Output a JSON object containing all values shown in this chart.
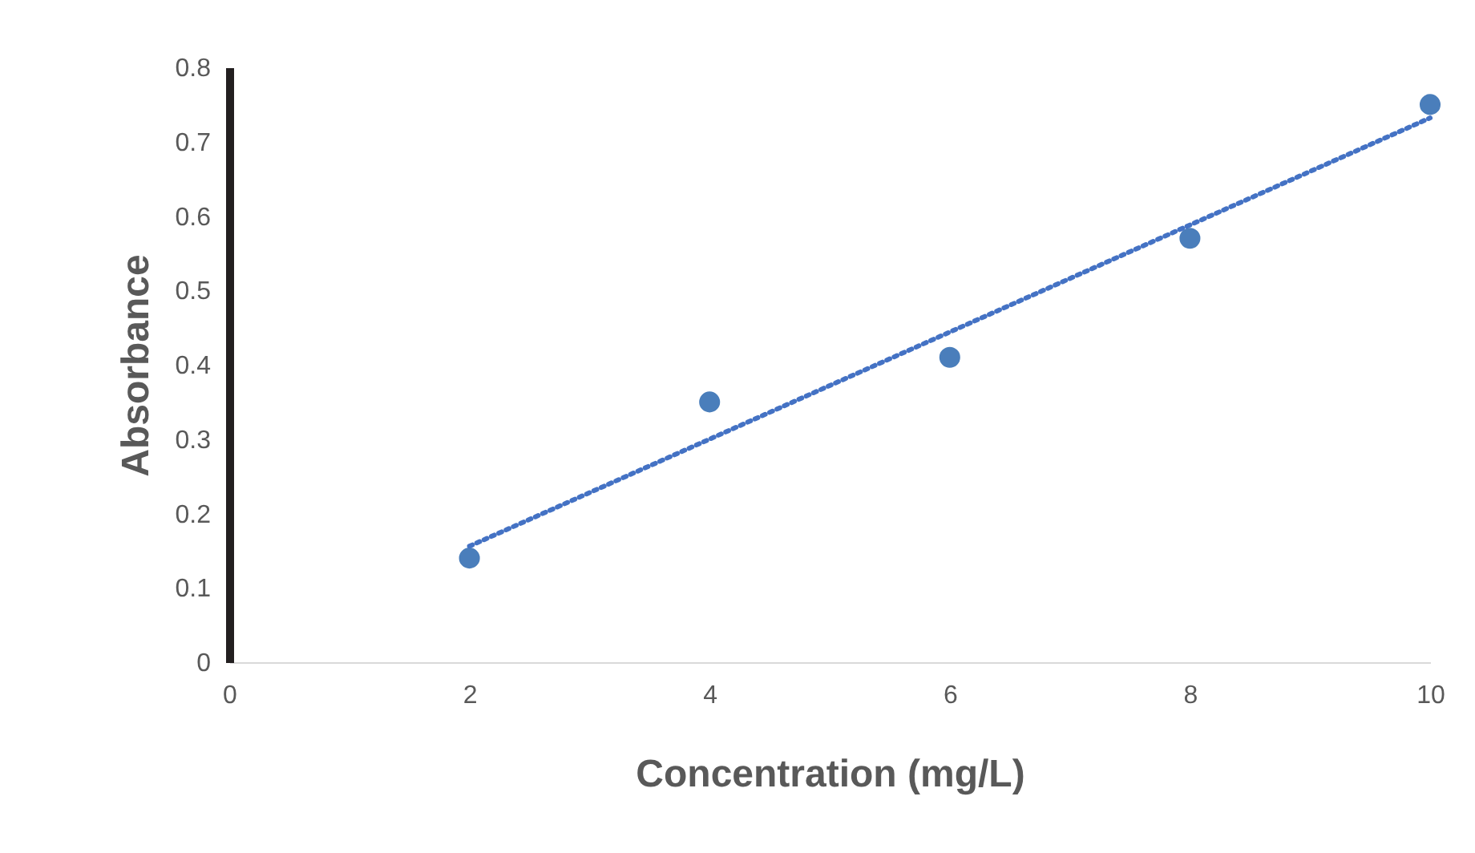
{
  "chart_data": {
    "type": "scatter",
    "xlabel": "Concentration (mg/L)",
    "ylabel": "Absorbance",
    "xlim": [
      0,
      10
    ],
    "xticks": [
      0,
      2,
      4,
      6,
      8,
      10
    ],
    "ylim": [
      0,
      0.8
    ],
    "yticks": [
      0,
      0.1,
      0.2,
      0.3,
      0.4,
      0.5,
      0.6,
      0.7,
      0.8
    ],
    "grid": false,
    "series": [
      {
        "color": "#4a7ebb",
        "marker": "circle",
        "x": [
          2,
          4,
          6,
          8,
          10
        ],
        "values": [
          0.14,
          0.35,
          0.41,
          0.57,
          0.75
        ]
      },
      {
        "type": "line",
        "color": "#4472c4",
        "marker": "none",
        "line_style": "dotted",
        "x": [
          2,
          10
        ],
        "values": [
          0.156,
          0.732
        ]
      }
    ]
  }
}
